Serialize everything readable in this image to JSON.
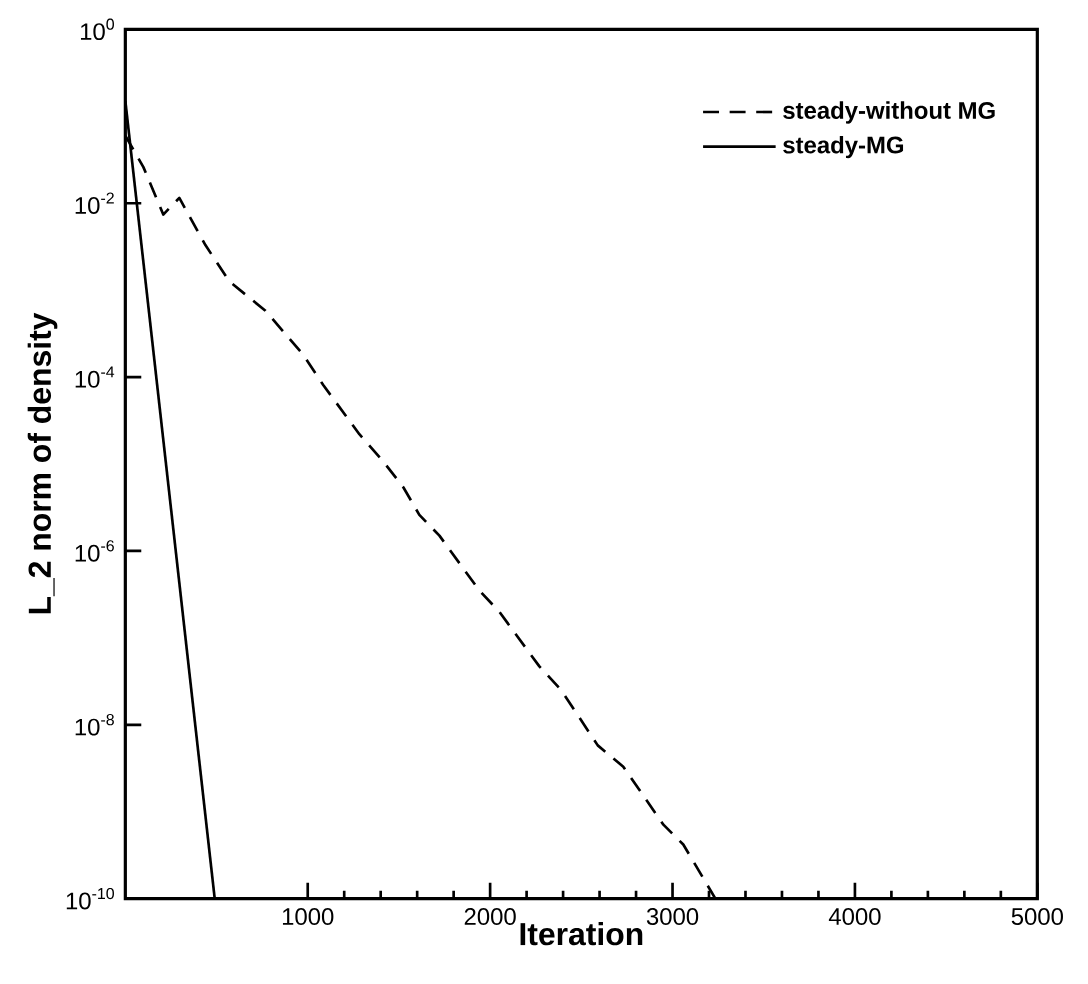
{
  "chart_data": {
    "type": "line",
    "xlabel": "Iteration",
    "ylabel": "L_2 norm of density",
    "log": "y",
    "xlim": [
      0,
      5000
    ],
    "xticks": [
      1000,
      2000,
      3000,
      4000,
      5000
    ],
    "ylim": [
      1e-10,
      1
    ],
    "yticks": [
      {
        "value": 1,
        "label": "10$^{0}$"
      },
      {
        "value": 0.01,
        "label": "10$^{-2}$"
      },
      {
        "value": 0.0001,
        "label": "10$^{-4}$"
      },
      {
        "value": 1e-06,
        "label": "10$^{-6}$"
      },
      {
        "value": 1e-08,
        "label": "10$^{-8}$"
      },
      {
        "value": 1e-10,
        "label": "10$^{-10}$"
      }
    ],
    "grid": false,
    "legend": "top right",
    "marker": "none",
    "series": [
      {
        "name": "steady-without MG",
        "color": "#000000",
        "line_style": "dashed",
        "x": [
          0,
          99,
          208,
          296,
          439,
          570,
          768,
          976,
          1085,
          1283,
          1414,
          1524,
          1612,
          1722,
          1941,
          2050,
          2270,
          2390,
          2590,
          2730,
          2950,
          3059,
          3235
        ],
        "values": [
          0.06,
          0.026,
          0.0074,
          0.0115,
          0.0033,
          0.00126,
          0.00058,
          0.00018,
          8.1e-05,
          2.2e-05,
          1.07e-05,
          5.4e-06,
          2.6e-06,
          1.5e-06,
          3.5e-07,
          2e-07,
          4.7e-08,
          2.5e-08,
          5.8e-09,
          3.3e-09,
          7.1e-10,
          4.2e-10,
          1e-10
        ]
      },
      {
        "name": "steady-MG",
        "color": "#000000",
        "line_style": "solid",
        "x": [
          0,
          490
        ],
        "values": [
          0.15,
          1e-10
        ]
      }
    ]
  }
}
